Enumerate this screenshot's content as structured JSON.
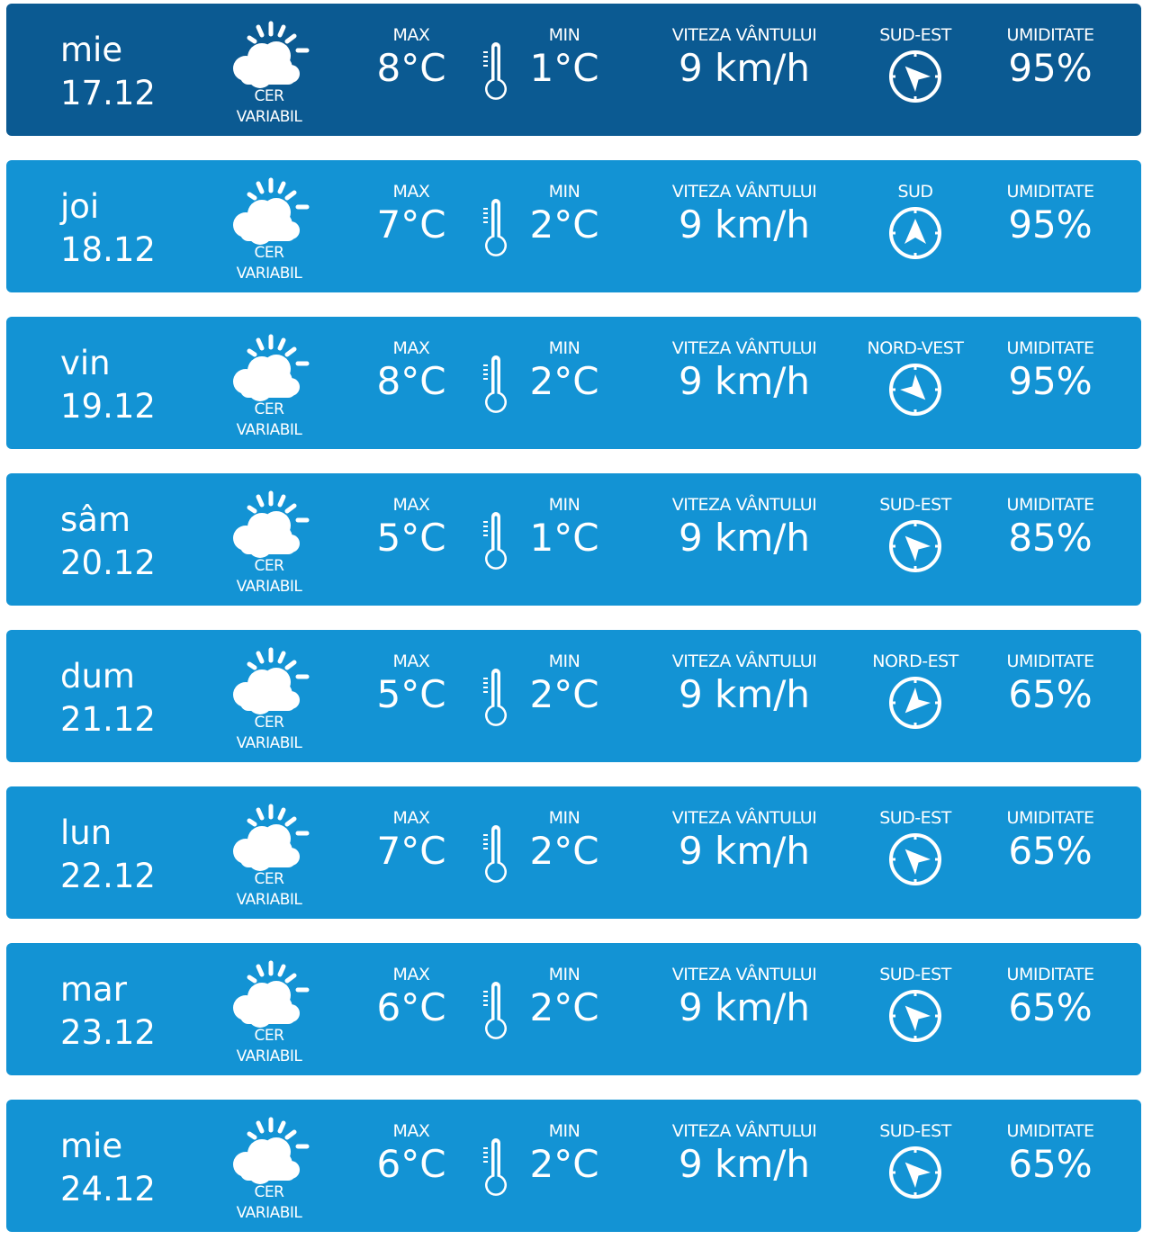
{
  "labels": {
    "max": "MAX",
    "min": "MIN",
    "wind_speed": "VITEZA VÂNTULUI",
    "humidity": "UMIDITATE"
  },
  "colors": {
    "today": "#0b5a92",
    "row": "#1393d4",
    "icon": "#ffffff"
  },
  "icons": {
    "weather": "sun-behind-cloud-icon",
    "thermometer": "thermometer-icon",
    "wind": "compass-arrow-icon"
  },
  "days": [
    {
      "day": "mie",
      "date": "17.12",
      "condition_line1": "CER",
      "condition_line2": "VARIABIL",
      "max": "8°C",
      "min": "1°C",
      "wind": "9 km/h",
      "direction": "SUD-EST",
      "humidity": "95%",
      "today": true
    },
    {
      "day": "joi",
      "date": "18.12",
      "condition_line1": "CER",
      "condition_line2": "VARIABIL",
      "max": "7°C",
      "min": "2°C",
      "wind": "9 km/h",
      "direction": "SUD",
      "humidity": "95%"
    },
    {
      "day": "vin",
      "date": "19.12",
      "condition_line1": "CER",
      "condition_line2": "VARIABIL",
      "max": "8°C",
      "min": "2°C",
      "wind": "9 km/h",
      "direction": "NORD-VEST",
      "humidity": "95%"
    },
    {
      "day": "sâm",
      "date": "20.12",
      "condition_line1": "CER",
      "condition_line2": "VARIABIL",
      "max": "5°C",
      "min": "1°C",
      "wind": "9 km/h",
      "direction": "SUD-EST",
      "humidity": "85%"
    },
    {
      "day": "dum",
      "date": "21.12",
      "condition_line1": "CER",
      "condition_line2": "VARIABIL",
      "max": "5°C",
      "min": "2°C",
      "wind": "9 km/h",
      "direction": "NORD-EST",
      "humidity": "65%"
    },
    {
      "day": "lun",
      "date": "22.12",
      "condition_line1": "CER",
      "condition_line2": "VARIABIL",
      "max": "7°C",
      "min": "2°C",
      "wind": "9 km/h",
      "direction": "SUD-EST",
      "humidity": "65%"
    },
    {
      "day": "mar",
      "date": "23.12",
      "condition_line1": "CER",
      "condition_line2": "VARIABIL",
      "max": "6°C",
      "min": "2°C",
      "wind": "9 km/h",
      "direction": "SUD-EST",
      "humidity": "65%"
    },
    {
      "day": "mie",
      "date": "24.12",
      "condition_line1": "CER",
      "condition_line2": "VARIABIL",
      "max": "6°C",
      "min": "2°C",
      "wind": "9 km/h",
      "direction": "SUD-EST",
      "humidity": "65%"
    }
  ]
}
